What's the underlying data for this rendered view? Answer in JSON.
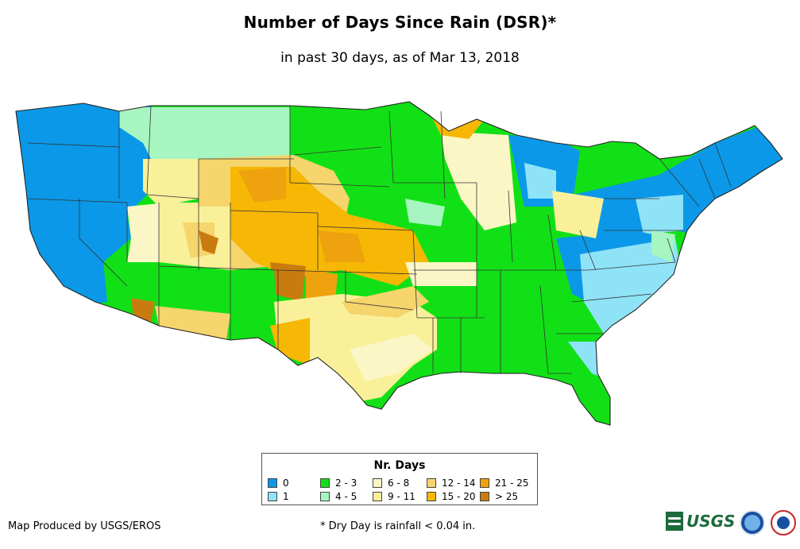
{
  "title": "Number of Days Since Rain (DSR)*",
  "subtitle": "in past 30 days, as of Mar 13, 2018",
  "legend": {
    "title": "Nr. Days",
    "items": [
      {
        "label": "0",
        "color": "#0b98e8"
      },
      {
        "label": "1",
        "color": "#8fe3f7"
      },
      {
        "label": "2 - 3",
        "color": "#12e016"
      },
      {
        "label": "4 - 5",
        "color": "#a7f5c1"
      },
      {
        "label": "6 - 8",
        "color": "#fbf6c6"
      },
      {
        "label": "9 - 11",
        "color": "#f9f099"
      },
      {
        "label": "12 - 14",
        "color": "#f5d56c"
      },
      {
        "label": "15 - 20",
        "color": "#f6b705"
      },
      {
        "label": "21 - 25",
        "color": "#eea20d"
      },
      {
        "label": "> 25",
        "color": "#c87c10"
      }
    ]
  },
  "footnote": "* Dry Day is rainfall < 0.04 in.",
  "credit": "Map Produced by USGS/EROS",
  "logos": {
    "usgs": "USGS",
    "noaa_icon": "noaa-logo-icon",
    "nws_icon": "nws-logo-icon"
  }
}
